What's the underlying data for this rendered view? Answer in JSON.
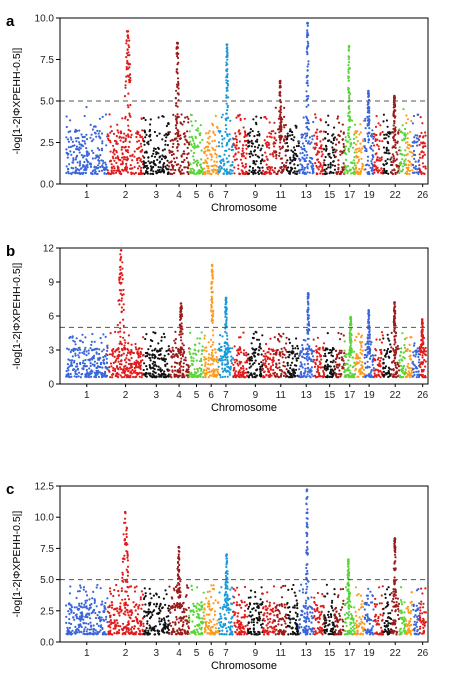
{
  "figure": {
    "panels": [
      {
        "letter": "a"
      },
      {
        "letter": "b"
      },
      {
        "letter": "c"
      }
    ]
  },
  "chart_data": [
    {
      "type": "scatter",
      "panel": "a",
      "xlabel": "Chromosome",
      "ylabel": "-log[1-2|ΦXPEHH-0.5|]",
      "ylim": [
        0,
        10
      ],
      "yticks": [
        "0.0",
        "2.5",
        "5.0",
        "7.5",
        "10.0"
      ],
      "xticks": [
        "1",
        "2",
        "3",
        "4",
        "5",
        "6",
        "7",
        "9",
        "11",
        "13",
        "15",
        "17",
        "19",
        "22",
        "26"
      ],
      "threshold": 5.0,
      "threshold_style": "dashed",
      "colors": [
        "#3a66d8",
        "#e01b1b",
        "#111111",
        "#9b1b1b",
        "#5bd43a",
        "#ff9a1a",
        "#1a9ad8"
      ],
      "peaks": [
        {
          "chromosome": "2",
          "max": 9.2
        },
        {
          "chromosome": "4",
          "max": 8.5
        },
        {
          "chromosome": "7",
          "max": 8.4
        },
        {
          "chromosome": "11",
          "max": 6.2
        },
        {
          "chromosome": "13",
          "max": 9.7
        },
        {
          "chromosome": "17",
          "max": 8.3
        },
        {
          "chromosome": "19",
          "max": 5.6
        },
        {
          "chromosome": "22",
          "max": 5.3
        }
      ]
    },
    {
      "type": "scatter",
      "panel": "b",
      "xlabel": "Chromosome",
      "ylabel": "-log[1-2|ΦXPEHH-0.5|]",
      "ylim": [
        0,
        12
      ],
      "yticks": [
        "0",
        "3",
        "6",
        "9",
        "12"
      ],
      "xticks": [
        "1",
        "2",
        "3",
        "4",
        "5",
        "6",
        "7",
        "9",
        "11",
        "13",
        "15",
        "17",
        "19",
        "22",
        "26"
      ],
      "threshold": 5.0,
      "threshold_style": "dashed",
      "colors": [
        "#3a66d8",
        "#e01b1b",
        "#111111",
        "#9b1b1b",
        "#5bd43a",
        "#ff9a1a",
        "#1a9ad8"
      ],
      "peaks": [
        {
          "chromosome": "2",
          "max": 11.8
        },
        {
          "chromosome": "4",
          "max": 7.1
        },
        {
          "chromosome": "6",
          "max": 10.5
        },
        {
          "chromosome": "7",
          "max": 7.6
        },
        {
          "chromosome": "13",
          "max": 8.0
        },
        {
          "chromosome": "17",
          "max": 5.9
        },
        {
          "chromosome": "19",
          "max": 6.5
        },
        {
          "chromosome": "22",
          "max": 7.2
        },
        {
          "chromosome": "26",
          "max": 5.7
        }
      ]
    },
    {
      "type": "scatter",
      "panel": "c",
      "xlabel": "Chromosome",
      "ylabel": "-log[1-2|ΦXPEHH-0.5|]",
      "ylim": [
        0,
        12.5
      ],
      "yticks": [
        "0.0",
        "2.5",
        "5.0",
        "7.5",
        "10.0",
        "12.5"
      ],
      "xticks": [
        "1",
        "2",
        "3",
        "4",
        "5",
        "6",
        "7",
        "9",
        "11",
        "13",
        "15",
        "17",
        "19",
        "22",
        "26"
      ],
      "threshold": 5.0,
      "threshold_style": "dashed",
      "colors": [
        "#3a66d8",
        "#e01b1b",
        "#111111",
        "#9b1b1b",
        "#5bd43a",
        "#ff9a1a",
        "#1a9ad8"
      ],
      "peaks": [
        {
          "chromosome": "2",
          "max": 10.4
        },
        {
          "chromosome": "4",
          "max": 7.6
        },
        {
          "chromosome": "7",
          "max": 7.0
        },
        {
          "chromosome": "13",
          "max": 12.2
        },
        {
          "chromosome": "17",
          "max": 6.6
        },
        {
          "chromosome": "22",
          "max": 8.3
        }
      ]
    }
  ]
}
